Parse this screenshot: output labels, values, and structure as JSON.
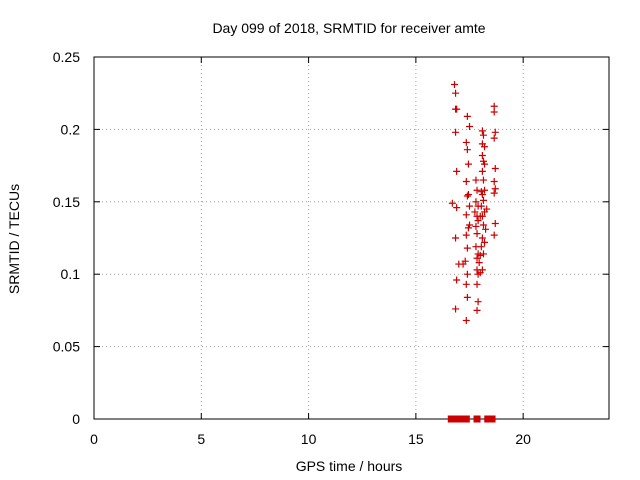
{
  "chart_data": {
    "type": "scatter",
    "title": "Day 099 of 2018, SRMTID for receiver amte",
    "xlabel": "GPS time / hours",
    "ylabel": "SRMTID / TECUs",
    "xlim": [
      0,
      24
    ],
    "ylim": [
      0,
      0.25
    ],
    "x_ticks": [
      0,
      5,
      10,
      15,
      20
    ],
    "x_tick_labels": [
      "0",
      "5",
      "10",
      "15",
      "20"
    ],
    "y_ticks": [
      0,
      0.05,
      0.1,
      0.15,
      0.2,
      0.25
    ],
    "y_tick_labels": [
      "0",
      "0.05",
      "0.1",
      "0.15",
      "0.2",
      "0.25"
    ],
    "grid": true,
    "colors": {
      "points": "#cc0000",
      "frame": "#000000",
      "grid": "#a0a0a0"
    },
    "series": [
      {
        "marker": "plus",
        "points": [
          [
            16.8,
            0.231
          ],
          [
            16.85,
            0.225
          ],
          [
            16.85,
            0.214
          ],
          [
            16.9,
            0.214
          ],
          [
            16.85,
            0.198
          ],
          [
            16.9,
            0.171
          ],
          [
            16.7,
            0.149
          ],
          [
            16.9,
            0.146
          ],
          [
            16.85,
            0.125
          ],
          [
            16.9,
            0.096
          ],
          [
            16.85,
            0.076
          ],
          [
            17.0,
            0.107
          ],
          [
            17.4,
            0.209
          ],
          [
            17.5,
            0.202
          ],
          [
            17.35,
            0.191
          ],
          [
            17.4,
            0.186
          ],
          [
            17.45,
            0.176
          ],
          [
            17.35,
            0.164
          ],
          [
            17.45,
            0.155
          ],
          [
            17.4,
            0.154
          ],
          [
            17.5,
            0.147
          ],
          [
            17.35,
            0.141
          ],
          [
            17.5,
            0.134
          ],
          [
            17.45,
            0.132
          ],
          [
            17.35,
            0.127
          ],
          [
            17.4,
            0.118
          ],
          [
            17.3,
            0.109
          ],
          [
            17.4,
            0.1
          ],
          [
            17.35,
            0.093
          ],
          [
            17.4,
            0.084
          ],
          [
            17.35,
            0.068
          ],
          [
            17.2,
            0.107
          ],
          [
            17.8,
            0.165
          ],
          [
            17.85,
            0.158
          ],
          [
            17.8,
            0.15
          ],
          [
            17.9,
            0.147
          ],
          [
            17.75,
            0.143
          ],
          [
            17.85,
            0.14
          ],
          [
            17.9,
            0.137
          ],
          [
            17.8,
            0.133
          ],
          [
            17.85,
            0.128
          ],
          [
            17.8,
            0.119
          ],
          [
            17.9,
            0.114
          ],
          [
            17.85,
            0.111
          ],
          [
            17.95,
            0.108
          ],
          [
            17.85,
            0.103
          ],
          [
            17.9,
            0.1
          ],
          [
            17.85,
            0.093
          ],
          [
            17.9,
            0.081
          ],
          [
            17.85,
            0.075
          ],
          [
            18.0,
            0.101
          ],
          [
            18.0,
            0.113
          ],
          [
            18.1,
            0.199
          ],
          [
            18.15,
            0.196
          ],
          [
            18.1,
            0.19
          ],
          [
            18.2,
            0.188
          ],
          [
            18.1,
            0.182
          ],
          [
            18.15,
            0.178
          ],
          [
            18.2,
            0.176
          ],
          [
            18.1,
            0.171
          ],
          [
            18.15,
            0.165
          ],
          [
            18.05,
            0.157
          ],
          [
            18.2,
            0.158
          ],
          [
            18.1,
            0.155
          ],
          [
            18.15,
            0.151
          ],
          [
            18.05,
            0.147
          ],
          [
            18.2,
            0.143
          ],
          [
            18.1,
            0.14
          ],
          [
            18.15,
            0.134
          ],
          [
            18.25,
            0.131
          ],
          [
            18.1,
            0.125
          ],
          [
            18.2,
            0.122
          ],
          [
            18.05,
            0.119
          ],
          [
            18.15,
            0.114
          ],
          [
            18.1,
            0.103
          ],
          [
            18.0,
            0.14
          ],
          [
            18.3,
            0.145
          ],
          [
            18.65,
            0.216
          ],
          [
            18.65,
            0.212
          ],
          [
            18.7,
            0.198
          ],
          [
            18.65,
            0.194
          ],
          [
            18.7,
            0.173
          ],
          [
            18.65,
            0.164
          ],
          [
            18.7,
            0.159
          ],
          [
            18.65,
            0.156
          ],
          [
            18.7,
            0.135
          ],
          [
            18.65,
            0.127
          ]
        ]
      },
      {
        "marker": "square",
        "points": [
          [
            16.65,
            0
          ],
          [
            16.75,
            0
          ],
          [
            17.05,
            0
          ],
          [
            17.15,
            0
          ],
          [
            17.25,
            0
          ],
          [
            17.35,
            0
          ],
          [
            17.85,
            0
          ],
          [
            18.35,
            0
          ],
          [
            18.45,
            0
          ],
          [
            18.55,
            0
          ]
        ]
      }
    ]
  }
}
